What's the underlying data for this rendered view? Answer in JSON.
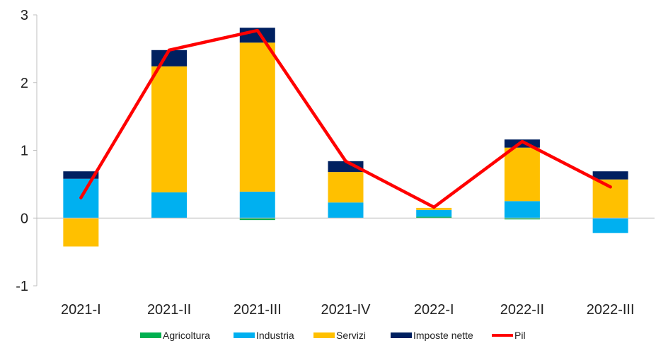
{
  "chart_data": {
    "type": "bar",
    "stacked": true,
    "categories": [
      "2021-I",
      "2021-II",
      "2021-III",
      "2021-IV",
      "2022-I",
      "2022-II",
      "2022-III"
    ],
    "ylim": [
      -1,
      3
    ],
    "yticks": [
      "-1",
      "0",
      "1",
      "2",
      "3"
    ],
    "grid": false,
    "legend_position": "bottom",
    "series": [
      {
        "name": "Agricoltura",
        "kind": "bar",
        "color": "#00B050",
        "values": [
          0.0,
          0.0,
          -0.03,
          0.0,
          0.02,
          -0.02,
          0.0
        ]
      },
      {
        "name": "Industria",
        "kind": "bar",
        "color": "#00B0F0",
        "values": [
          0.58,
          0.38,
          0.39,
          0.23,
          0.1,
          0.25,
          -0.22
        ]
      },
      {
        "name": "Servizi",
        "kind": "bar",
        "color": "#FFC000",
        "values": [
          -0.42,
          1.86,
          2.2,
          0.45,
          0.03,
          0.79,
          0.57
        ]
      },
      {
        "name": "Imposte nette",
        "kind": "bar",
        "color": "#002060",
        "values": [
          0.11,
          0.24,
          0.22,
          0.16,
          0.0,
          0.12,
          0.12
        ]
      },
      {
        "name": "Pil",
        "kind": "line",
        "color": "#FF0000",
        "values": [
          0.3,
          2.48,
          2.77,
          0.84,
          0.16,
          1.13,
          0.46
        ]
      }
    ]
  }
}
